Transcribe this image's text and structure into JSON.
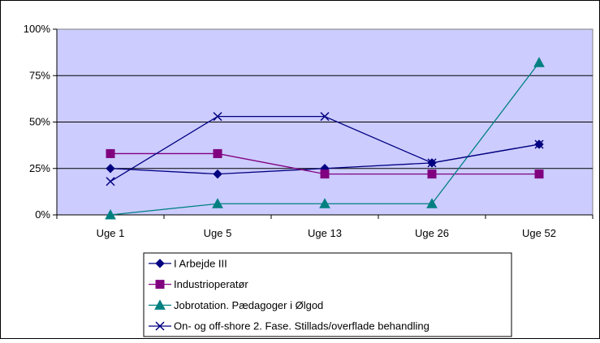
{
  "chart_data": {
    "type": "line",
    "title": "",
    "xlabel": "",
    "ylabel": "",
    "categories": [
      "Uge 1",
      "Uge 5",
      "Uge 13",
      "Uge 26",
      "Uge 52"
    ],
    "ylim": [
      0,
      100
    ],
    "yticks": [
      0,
      25,
      50,
      75,
      100
    ],
    "ytick_labels": [
      "0%",
      "25%",
      "50%",
      "75%",
      "100%"
    ],
    "grid": "horizontal",
    "plot_background": "#ccccff",
    "legend_position": "bottom",
    "series": [
      {
        "name": "I Arbejde III",
        "color": "#000080",
        "marker": "diamond",
        "values": [
          25,
          22,
          25,
          28,
          38
        ]
      },
      {
        "name": "Industrioperatør",
        "color": "#800080",
        "marker": "square",
        "values": [
          33,
          33,
          22,
          22,
          22
        ]
      },
      {
        "name": "Jobrotation. Pædagoger i Ølgod",
        "color": "#008080",
        "marker": "triangle",
        "values": [
          0,
          6,
          6,
          6,
          82
        ]
      },
      {
        "name": "On- og off-shore 2. Fase. Stillads/overflade behandling",
        "color": "#000080",
        "marker": "x",
        "values": [
          18,
          53,
          53,
          28,
          38
        ]
      }
    ]
  }
}
